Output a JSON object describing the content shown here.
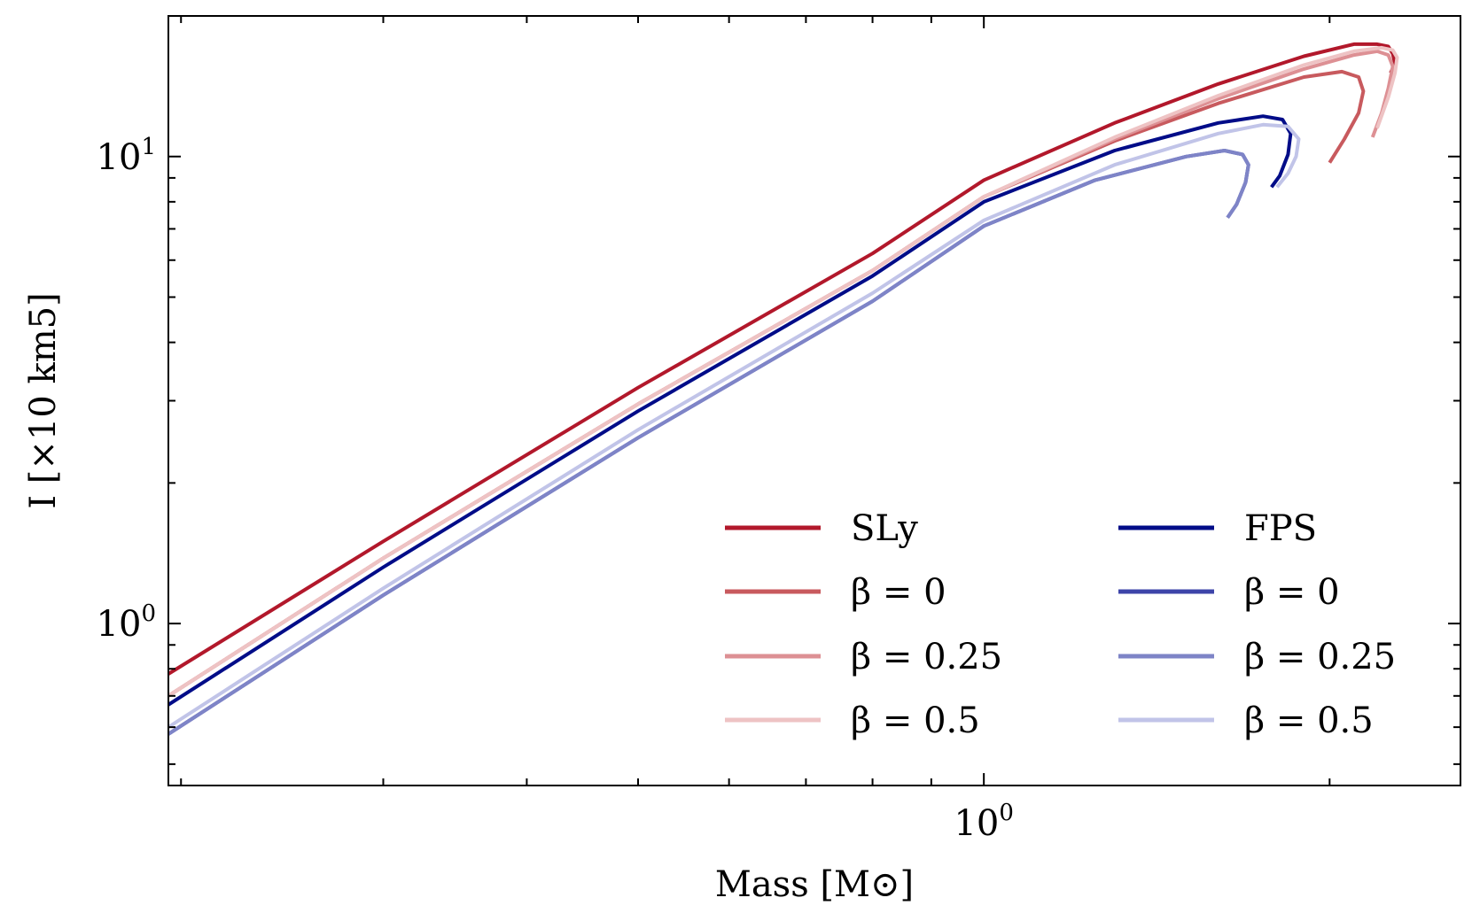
{
  "chart_data": {
    "type": "line",
    "xscale": "log",
    "yscale": "log",
    "xlabel": "Mass [M⊙]",
    "ylabel": "I [×10 km5]",
    "xlim": [
      0.195,
      2.6
    ],
    "ylim": [
      0.45,
      20
    ],
    "x_major_ticks": [
      {
        "value": 1,
        "base": "10",
        "exp": "0"
      }
    ],
    "y_major_ticks": [
      {
        "value": 1,
        "base": "10",
        "exp": "0"
      },
      {
        "value": 10,
        "base": "10",
        "exp": "1"
      }
    ],
    "legend": {
      "location": "lower-right",
      "columns": 2
    },
    "series": [
      {
        "name": "SLy",
        "label": "SLy",
        "color": "#b2182b",
        "opacity": 1.0,
        "x": [
          0.195,
          0.3,
          0.5,
          0.8,
          1.0,
          1.3,
          1.6,
          1.9,
          2.1,
          2.2,
          2.25,
          2.27,
          2.28,
          2.26
        ],
        "y": [
          0.78,
          1.5,
          3.2,
          6.2,
          8.9,
          11.8,
          14.3,
          16.4,
          17.4,
          17.4,
          17.2,
          16.6,
          15.8,
          15.1
        ]
      },
      {
        "name": "SLy beta=0",
        "label": "β = 0",
        "color": "#c85a5e",
        "opacity": 1.0,
        "x": [
          0.195,
          0.3,
          0.5,
          0.8,
          1.0,
          1.3,
          1.6,
          1.9,
          2.05,
          2.12,
          2.14,
          2.12,
          2.06,
          2.0
        ],
        "y": [
          0.7,
          1.38,
          2.95,
          5.7,
          8.2,
          10.8,
          13.0,
          14.8,
          15.2,
          14.8,
          13.8,
          12.4,
          10.9,
          9.7
        ]
      },
      {
        "name": "SLy beta=0.25",
        "label": "β = 0.25",
        "color": "#dd9094",
        "opacity": 1.0,
        "x": [
          0.195,
          0.3,
          0.5,
          0.8,
          1.0,
          1.3,
          1.6,
          1.9,
          2.1,
          2.2,
          2.25,
          2.27,
          2.25,
          2.22,
          2.18
        ],
        "y": [
          0.7,
          1.38,
          2.95,
          5.7,
          8.2,
          10.9,
          13.3,
          15.4,
          16.5,
          16.8,
          16.5,
          15.6,
          14.0,
          12.4,
          11.0
        ]
      },
      {
        "name": "SLy beta=0.5",
        "label": "β = 0.5",
        "color": "#eec3c4",
        "opacity": 1.0,
        "x": [
          0.195,
          0.3,
          0.5,
          0.8,
          1.0,
          1.3,
          1.6,
          1.9,
          2.1,
          2.22,
          2.27,
          2.29,
          2.28,
          2.25,
          2.2
        ],
        "y": [
          0.7,
          1.38,
          2.95,
          5.7,
          8.2,
          11.0,
          13.5,
          15.7,
          16.8,
          17.1,
          16.9,
          16.3,
          15.1,
          13.4,
          11.5
        ]
      },
      {
        "name": "FPS",
        "label": "FPS",
        "color": "#000c88",
        "opacity": 1.0,
        "x": [
          0.195,
          0.3,
          0.5,
          0.8,
          1.0,
          1.3,
          1.6,
          1.75,
          1.82,
          1.85,
          1.84,
          1.81,
          1.78
        ],
        "y": [
          0.67,
          1.32,
          2.85,
          5.55,
          8.0,
          10.3,
          11.8,
          12.2,
          12.0,
          11.2,
          10.1,
          9.1,
          8.6
        ]
      },
      {
        "name": "FPS beta=0",
        "label": "β = 0",
        "color": "#3d44a9",
        "opacity": 1.0,
        "x": [
          0.195,
          0.3,
          0.5,
          0.8,
          1.0,
          1.25,
          1.5,
          1.62,
          1.68,
          1.7,
          1.69,
          1.66,
          1.63
        ],
        "y": [
          0.58,
          1.15,
          2.5,
          4.9,
          7.1,
          8.9,
          10.0,
          10.3,
          10.1,
          9.6,
          8.8,
          7.9,
          7.4
        ]
      },
      {
        "name": "FPS beta=0.25",
        "label": "β = 0.25",
        "color": "#7e84c7",
        "opacity": 1.0,
        "x": [
          0.195,
          0.3,
          0.5,
          0.8,
          1.0,
          1.25,
          1.5,
          1.62,
          1.68,
          1.7,
          1.69,
          1.66,
          1.63
        ],
        "y": [
          0.58,
          1.15,
          2.5,
          4.9,
          7.1,
          8.9,
          10.0,
          10.3,
          10.1,
          9.6,
          8.8,
          7.9,
          7.4
        ]
      },
      {
        "name": "FPS beta=0.5",
        "label": "β = 0.5",
        "color": "#c1c4e8",
        "opacity": 1.0,
        "x": [
          0.195,
          0.3,
          0.5,
          0.8,
          1.0,
          1.3,
          1.6,
          1.75,
          1.84,
          1.88,
          1.87,
          1.84,
          1.8
        ],
        "y": [
          0.6,
          1.19,
          2.6,
          5.1,
          7.3,
          9.6,
          11.2,
          11.7,
          11.6,
          10.9,
          10.0,
          9.2,
          8.6
        ]
      }
    ]
  }
}
